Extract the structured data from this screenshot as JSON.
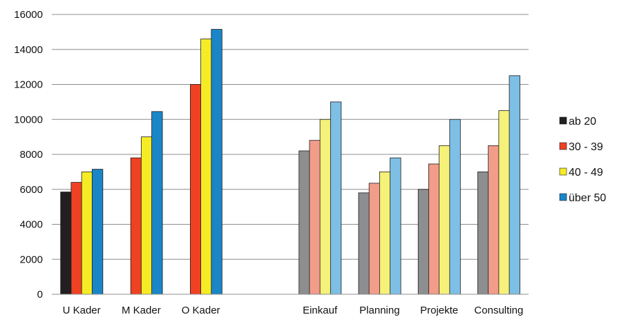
{
  "chart_data": {
    "type": "bar",
    "title": "",
    "xlabel": "",
    "ylabel": "",
    "ylim": [
      0,
      16000
    ],
    "yticks": [
      0,
      2000,
      4000,
      6000,
      8000,
      10000,
      12000,
      14000,
      16000
    ],
    "grid": true,
    "legend_position": "right",
    "categories": [
      "U Kader",
      "M Kader",
      "O Kader",
      "",
      "Einkauf",
      "Planning",
      "Projekte",
      "Consulting"
    ],
    "series": [
      {
        "name": "ab 20",
        "color": "#231f20",
        "values": [
          5850,
          null,
          null,
          null,
          null,
          null,
          null,
          null
        ]
      },
      {
        "name": "30 - 39",
        "color": "#ef4123",
        "values": [
          6400,
          7800,
          12000,
          null,
          null,
          null,
          null,
          null
        ]
      },
      {
        "name": "40 - 49",
        "color": "#f5ec26",
        "values": [
          7000,
          9000,
          14600,
          null,
          null,
          null,
          null,
          null
        ]
      },
      {
        "name": "über 50",
        "color": "#1a86c8",
        "values": [
          7150,
          10450,
          15150,
          null,
          null,
          null,
          null,
          null
        ]
      }
    ],
    "faded_series": [
      {
        "color": "#8d8e90",
        "values": [
          null,
          null,
          null,
          null,
          8200,
          5800,
          6000,
          7000
        ]
      },
      {
        "color": "#f29c8a",
        "values": [
          null,
          null,
          null,
          null,
          8800,
          6350,
          7450,
          8500
        ]
      },
      {
        "color": "#f6f178",
        "values": [
          null,
          null,
          null,
          null,
          10000,
          7000,
          8500,
          10500
        ]
      },
      {
        "color": "#7ebfe6",
        "values": [
          null,
          null,
          null,
          null,
          11000,
          7800,
          10000,
          12500
        ]
      }
    ]
  }
}
